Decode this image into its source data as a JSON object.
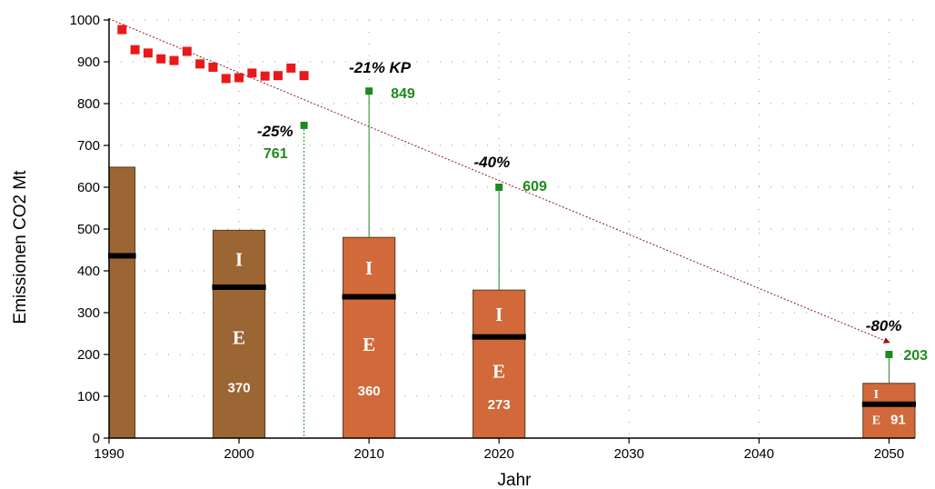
{
  "chart_data": {
    "type": "bar",
    "xlabel": "Jahr",
    "ylabel": "Emissionen CO2 Mt",
    "xlim": [
      1990,
      2052
    ],
    "ylim": [
      0,
      1000
    ],
    "x_ticks": [
      1990,
      2000,
      2010,
      2020,
      2030,
      2040,
      2050
    ],
    "y_ticks": [
      0,
      100,
      200,
      300,
      400,
      500,
      600,
      700,
      800,
      900,
      1000
    ],
    "grid": "dotted",
    "colors": {
      "bar_historic": "#9b6534",
      "bar_projected": "#d2693a",
      "observed": "#e8191b",
      "target": "#1e8a1e",
      "trend": "#8b1a1a",
      "divider": "#000000"
    },
    "bars": [
      {
        "x": 1991,
        "total": 648,
        "E": 436
      },
      {
        "x": 2000,
        "total": 497,
        "E": 361,
        "E_value": "370"
      },
      {
        "x": 2010,
        "total": 480,
        "E": 338,
        "E_value": "360"
      },
      {
        "x": 2020,
        "total": 354,
        "E": 242,
        "E_value": "273"
      },
      {
        "x": 2050,
        "total": 131,
        "E": 81,
        "E_value": "91"
      }
    ],
    "bar_labels": {
      "I": "I",
      "E": "E"
    },
    "observed_emissions": {
      "x": [
        1991,
        1992,
        1993,
        1994,
        1995,
        1996,
        1997,
        1998,
        1999,
        2000,
        2001,
        2002,
        2003,
        2004,
        2005
      ],
      "y": [
        977,
        929,
        921,
        907,
        903,
        925,
        895,
        887,
        860,
        862,
        873,
        866,
        867,
        885,
        867
      ]
    },
    "targets": [
      {
        "x": 2005,
        "y": 748,
        "label": "-25%",
        "value": "761"
      },
      {
        "x": 2010,
        "y": 830,
        "label": "-21% KP",
        "value": "849"
      },
      {
        "x": 2020,
        "y": 600,
        "label": "-40%",
        "value": "609"
      },
      {
        "x": 2050,
        "y": 200,
        "label": "-80%",
        "value": "203"
      }
    ],
    "trend_line": {
      "from": [
        1990,
        1003
      ],
      "to": [
        2050,
        203
      ]
    }
  }
}
